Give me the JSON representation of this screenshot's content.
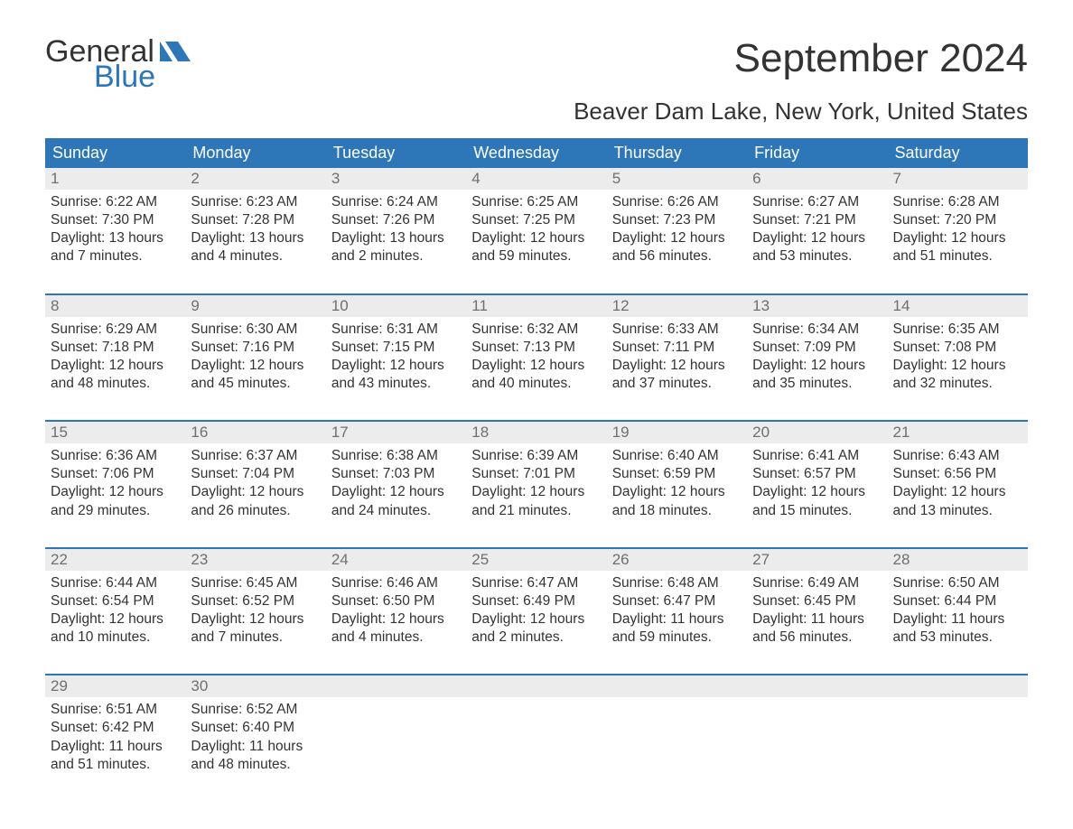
{
  "logo": {
    "top": "General",
    "bottom": "Blue"
  },
  "title": "September 2024",
  "subtitle": "Beaver Dam Lake, New York, United States",
  "colors": {
    "header_bg": "#2d76b8",
    "header_text": "#ffffff",
    "daynum_bg": "#ececec",
    "daynum_text": "#6f6f6f",
    "body_text": "#333333",
    "logo_blue": "#2d76b8",
    "week_border": "#2d76b8"
  },
  "days_of_week": [
    "Sunday",
    "Monday",
    "Tuesday",
    "Wednesday",
    "Thursday",
    "Friday",
    "Saturday"
  ],
  "weeks": [
    [
      {
        "n": "1",
        "sr": "Sunrise: 6:22 AM",
        "ss": "Sunset: 7:30 PM",
        "d1": "Daylight: 13 hours",
        "d2": "and 7 minutes."
      },
      {
        "n": "2",
        "sr": "Sunrise: 6:23 AM",
        "ss": "Sunset: 7:28 PM",
        "d1": "Daylight: 13 hours",
        "d2": "and 4 minutes."
      },
      {
        "n": "3",
        "sr": "Sunrise: 6:24 AM",
        "ss": "Sunset: 7:26 PM",
        "d1": "Daylight: 13 hours",
        "d2": "and 2 minutes."
      },
      {
        "n": "4",
        "sr": "Sunrise: 6:25 AM",
        "ss": "Sunset: 7:25 PM",
        "d1": "Daylight: 12 hours",
        "d2": "and 59 minutes."
      },
      {
        "n": "5",
        "sr": "Sunrise: 6:26 AM",
        "ss": "Sunset: 7:23 PM",
        "d1": "Daylight: 12 hours",
        "d2": "and 56 minutes."
      },
      {
        "n": "6",
        "sr": "Sunrise: 6:27 AM",
        "ss": "Sunset: 7:21 PM",
        "d1": "Daylight: 12 hours",
        "d2": "and 53 minutes."
      },
      {
        "n": "7",
        "sr": "Sunrise: 6:28 AM",
        "ss": "Sunset: 7:20 PM",
        "d1": "Daylight: 12 hours",
        "d2": "and 51 minutes."
      }
    ],
    [
      {
        "n": "8",
        "sr": "Sunrise: 6:29 AM",
        "ss": "Sunset: 7:18 PM",
        "d1": "Daylight: 12 hours",
        "d2": "and 48 minutes."
      },
      {
        "n": "9",
        "sr": "Sunrise: 6:30 AM",
        "ss": "Sunset: 7:16 PM",
        "d1": "Daylight: 12 hours",
        "d2": "and 45 minutes."
      },
      {
        "n": "10",
        "sr": "Sunrise: 6:31 AM",
        "ss": "Sunset: 7:15 PM",
        "d1": "Daylight: 12 hours",
        "d2": "and 43 minutes."
      },
      {
        "n": "11",
        "sr": "Sunrise: 6:32 AM",
        "ss": "Sunset: 7:13 PM",
        "d1": "Daylight: 12 hours",
        "d2": "and 40 minutes."
      },
      {
        "n": "12",
        "sr": "Sunrise: 6:33 AM",
        "ss": "Sunset: 7:11 PM",
        "d1": "Daylight: 12 hours",
        "d2": "and 37 minutes."
      },
      {
        "n": "13",
        "sr": "Sunrise: 6:34 AM",
        "ss": "Sunset: 7:09 PM",
        "d1": "Daylight: 12 hours",
        "d2": "and 35 minutes."
      },
      {
        "n": "14",
        "sr": "Sunrise: 6:35 AM",
        "ss": "Sunset: 7:08 PM",
        "d1": "Daylight: 12 hours",
        "d2": "and 32 minutes."
      }
    ],
    [
      {
        "n": "15",
        "sr": "Sunrise: 6:36 AM",
        "ss": "Sunset: 7:06 PM",
        "d1": "Daylight: 12 hours",
        "d2": "and 29 minutes."
      },
      {
        "n": "16",
        "sr": "Sunrise: 6:37 AM",
        "ss": "Sunset: 7:04 PM",
        "d1": "Daylight: 12 hours",
        "d2": "and 26 minutes."
      },
      {
        "n": "17",
        "sr": "Sunrise: 6:38 AM",
        "ss": "Sunset: 7:03 PM",
        "d1": "Daylight: 12 hours",
        "d2": "and 24 minutes."
      },
      {
        "n": "18",
        "sr": "Sunrise: 6:39 AM",
        "ss": "Sunset: 7:01 PM",
        "d1": "Daylight: 12 hours",
        "d2": "and 21 minutes."
      },
      {
        "n": "19",
        "sr": "Sunrise: 6:40 AM",
        "ss": "Sunset: 6:59 PM",
        "d1": "Daylight: 12 hours",
        "d2": "and 18 minutes."
      },
      {
        "n": "20",
        "sr": "Sunrise: 6:41 AM",
        "ss": "Sunset: 6:57 PM",
        "d1": "Daylight: 12 hours",
        "d2": "and 15 minutes."
      },
      {
        "n": "21",
        "sr": "Sunrise: 6:43 AM",
        "ss": "Sunset: 6:56 PM",
        "d1": "Daylight: 12 hours",
        "d2": "and 13 minutes."
      }
    ],
    [
      {
        "n": "22",
        "sr": "Sunrise: 6:44 AM",
        "ss": "Sunset: 6:54 PM",
        "d1": "Daylight: 12 hours",
        "d2": "and 10 minutes."
      },
      {
        "n": "23",
        "sr": "Sunrise: 6:45 AM",
        "ss": "Sunset: 6:52 PM",
        "d1": "Daylight: 12 hours",
        "d2": "and 7 minutes."
      },
      {
        "n": "24",
        "sr": "Sunrise: 6:46 AM",
        "ss": "Sunset: 6:50 PM",
        "d1": "Daylight: 12 hours",
        "d2": "and 4 minutes."
      },
      {
        "n": "25",
        "sr": "Sunrise: 6:47 AM",
        "ss": "Sunset: 6:49 PM",
        "d1": "Daylight: 12 hours",
        "d2": "and 2 minutes."
      },
      {
        "n": "26",
        "sr": "Sunrise: 6:48 AM",
        "ss": "Sunset: 6:47 PM",
        "d1": "Daylight: 11 hours",
        "d2": "and 59 minutes."
      },
      {
        "n": "27",
        "sr": "Sunrise: 6:49 AM",
        "ss": "Sunset: 6:45 PM",
        "d1": "Daylight: 11 hours",
        "d2": "and 56 minutes."
      },
      {
        "n": "28",
        "sr": "Sunrise: 6:50 AM",
        "ss": "Sunset: 6:44 PM",
        "d1": "Daylight: 11 hours",
        "d2": "and 53 minutes."
      }
    ],
    [
      {
        "n": "29",
        "sr": "Sunrise: 6:51 AM",
        "ss": "Sunset: 6:42 PM",
        "d1": "Daylight: 11 hours",
        "d2": "and 51 minutes."
      },
      {
        "n": "30",
        "sr": "Sunrise: 6:52 AM",
        "ss": "Sunset: 6:40 PM",
        "d1": "Daylight: 11 hours",
        "d2": "and 48 minutes."
      },
      null,
      null,
      null,
      null,
      null
    ]
  ]
}
